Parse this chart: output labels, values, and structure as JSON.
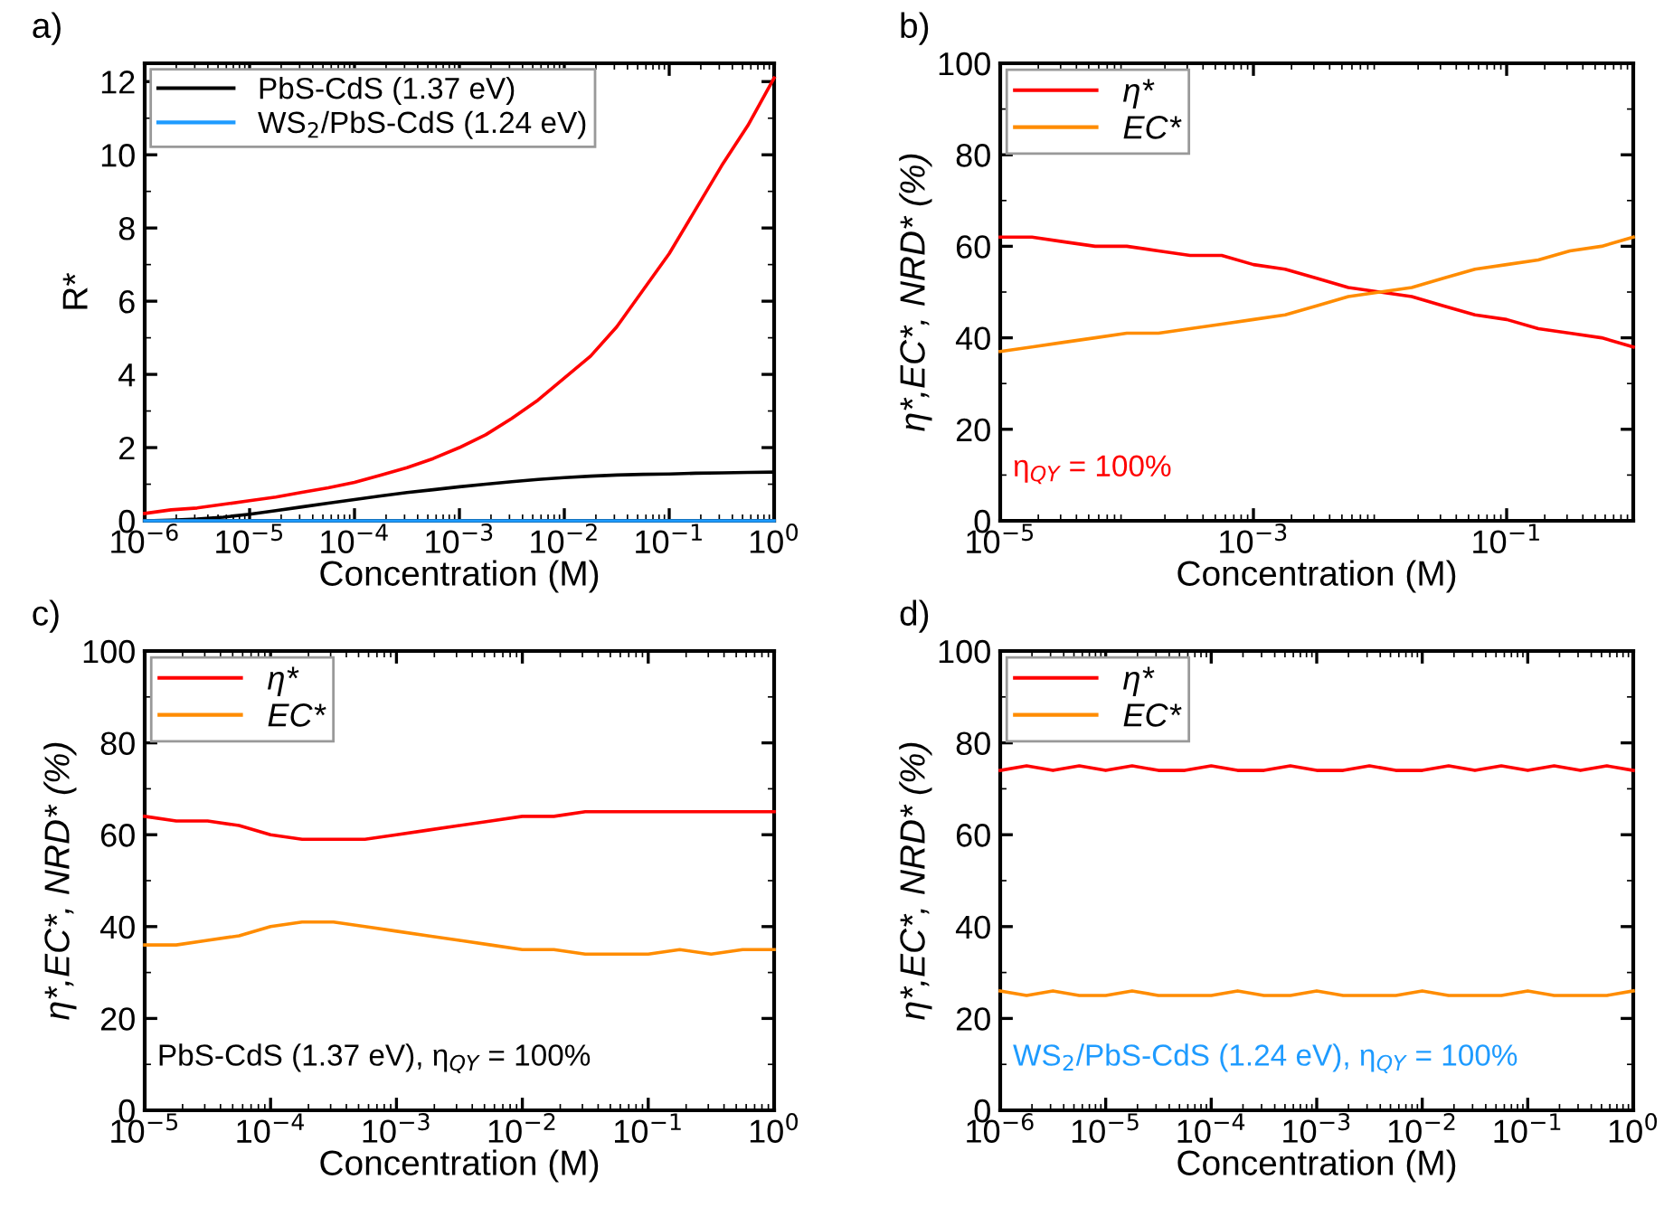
{
  "chart_data": [
    {
      "type": "line",
      "title": "a)",
      "xlabel": "Concentration (M)",
      "ylabel": "R*",
      "log": "x",
      "xlim": [
        1e-06,
        1
      ],
      "ylim": [
        0,
        12.5
      ],
      "xticks": [
        {
          "value": 1e-06,
          "label": "10$^{−6}$"
        },
        {
          "value": 1e-05,
          "label": "10$^{−5}$"
        },
        {
          "value": 0.0001,
          "label": "10$^{−4}$"
        },
        {
          "value": 0.001,
          "label": "10$^{−3}$"
        },
        {
          "value": 0.01,
          "label": "10$^{−2}$"
        },
        {
          "value": 0.1,
          "label": "10$^{−1}$"
        },
        {
          "value": 1,
          "label": "10$^{0}$"
        }
      ],
      "yticks": [
        0,
        2,
        4,
        6,
        8,
        10,
        12
      ],
      "grid": false,
      "legend": "top left",
      "x": [
        1e-06,
        1.78e-06,
        3.16e-06,
        5.62e-06,
        1e-05,
        1.78e-05,
        3.16e-05,
        5.62e-05,
        0.0001,
        0.000178,
        0.000316,
        0.000562,
        0.001,
        0.00178,
        0.00316,
        0.00562,
        0.01,
        0.0178,
        0.0316,
        0.0562,
        0.1,
        0.178,
        0.316,
        0.562,
        1
      ],
      "series": [
        {
          "color": "#ff0000",
          "values": [
            0.2,
            0.3,
            0.35,
            0.45,
            0.55,
            0.65,
            0.78,
            0.9,
            1.05,
            1.25,
            1.45,
            1.7,
            2.0,
            2.35,
            2.8,
            3.3,
            3.9,
            4.5,
            5.3,
            6.3,
            7.3,
            8.5,
            9.7,
            10.8,
            12.1
          ]
        },
        {
          "name": "PbS-CdS (1.37 eV)",
          "color": "#000000",
          "values": [
            0,
            0.02,
            0.05,
            0.1,
            0.18,
            0.28,
            0.38,
            0.48,
            0.58,
            0.68,
            0.77,
            0.85,
            0.93,
            1.0,
            1.07,
            1.13,
            1.18,
            1.22,
            1.25,
            1.27,
            1.28,
            1.3,
            1.31,
            1.32,
            1.33
          ]
        },
        {
          "name": "WS$_{2}$/PbS-CdS (1.24 eV)",
          "color": "#1e9bff",
          "values": [
            0,
            0,
            0,
            0,
            0,
            0,
            0,
            0,
            0,
            0,
            0,
            0,
            0,
            0,
            0,
            0,
            0,
            0,
            0,
            0,
            0,
            0,
            0,
            0,
            0
          ]
        }
      ]
    },
    {
      "type": "line",
      "title": "b)",
      "xlabel": "Concentration (M)",
      "ylabel": "η*,EC*, NRD* (%)",
      "log": "x",
      "xlim": [
        1e-05,
        1
      ],
      "ylim": [
        0,
        100
      ],
      "xticks": [
        {
          "value": 1e-05,
          "label": "10$^{−5}$"
        },
        {
          "value": 0.001,
          "label": "10$^{−3}$"
        },
        {
          "value": 0.1,
          "label": "10$^{−1}$"
        }
      ],
      "yticks": [
        0,
        20,
        40,
        60,
        80,
        100
      ],
      "grid": false,
      "legend": "top left",
      "annotations": [
        "η$_{QY}$ = 100%"
      ],
      "x": [
        1e-05,
        1.78e-05,
        3.16e-05,
        5.62e-05,
        0.0001,
        0.000178,
        0.000316,
        0.000562,
        0.001,
        0.00178,
        0.00316,
        0.00562,
        0.01,
        0.0178,
        0.0316,
        0.0562,
        0.1,
        0.178,
        0.316,
        0.562,
        1
      ],
      "series": [
        {
          "name": "η*",
          "color": "#ff0000",
          "values": [
            62,
            62,
            61,
            60,
            60,
            59,
            58,
            58,
            56,
            55,
            53,
            51,
            50,
            49,
            47,
            45,
            44,
            42,
            41,
            40,
            38
          ]
        },
        {
          "name": "EC*",
          "color": "#ff8c00",
          "values": [
            37,
            38,
            39,
            40,
            41,
            41,
            42,
            43,
            44,
            45,
            47,
            49,
            50,
            51,
            53,
            55,
            56,
            57,
            59,
            60,
            62
          ]
        }
      ]
    },
    {
      "type": "line",
      "title": "c)",
      "xlabel": "Concentration (M)",
      "ylabel": "η*,EC*, NRD* (%)",
      "log": "x",
      "xlim": [
        1e-05,
        1
      ],
      "ylim": [
        0,
        100
      ],
      "xticks": [
        {
          "value": 1e-05,
          "label": "10$^{−5}$"
        },
        {
          "value": 0.0001,
          "label": "10$^{−4}$"
        },
        {
          "value": 0.001,
          "label": "10$^{−3}$"
        },
        {
          "value": 0.01,
          "label": "10$^{−2}$"
        },
        {
          "value": 0.1,
          "label": "10$^{−1}$"
        },
        {
          "value": 1,
          "label": "10$^{0}$"
        }
      ],
      "yticks": [
        0,
        20,
        40,
        60,
        80,
        100
      ],
      "grid": false,
      "legend": "top left",
      "annotations": [
        "PbS-CdS (1.37 eV), η$_{QY}$ = 100%"
      ],
      "x": [
        1e-05,
        1.78e-05,
        3.16e-05,
        5.62e-05,
        0.0001,
        0.000178,
        0.000316,
        0.000562,
        0.001,
        0.00178,
        0.00316,
        0.00562,
        0.01,
        0.0178,
        0.0316,
        0.0562,
        0.1,
        0.178,
        0.316,
        0.562,
        1
      ],
      "series": [
        {
          "name": "η*",
          "color": "#ff0000",
          "values": [
            64,
            63,
            63,
            62,
            60,
            59,
            59,
            59,
            60,
            61,
            62,
            63,
            64,
            64,
            65,
            65,
            65,
            65,
            65,
            65,
            65
          ]
        },
        {
          "name": "EC*",
          "color": "#ff8c00",
          "values": [
            36,
            36,
            37,
            38,
            40,
            41,
            41,
            40,
            39,
            38,
            37,
            36,
            35,
            35,
            34,
            34,
            34,
            35,
            34,
            35,
            35
          ]
        }
      ]
    },
    {
      "type": "line",
      "title": "d)",
      "xlabel": "Concentration (M)",
      "ylabel": "η*,EC*, NRD* (%)",
      "log": "x",
      "xlim": [
        1e-06,
        1
      ],
      "ylim": [
        0,
        100
      ],
      "xticks": [
        {
          "value": 1e-06,
          "label": "10$^{−6}$"
        },
        {
          "value": 1e-05,
          "label": "10$^{−5}$"
        },
        {
          "value": 0.0001,
          "label": "10$^{−4}$"
        },
        {
          "value": 0.001,
          "label": "10$^{−3}$"
        },
        {
          "value": 0.01,
          "label": "10$^{−2}$"
        },
        {
          "value": 0.1,
          "label": "10$^{−1}$"
        },
        {
          "value": 1,
          "label": "10$^{0}$"
        }
      ],
      "yticks": [
        0,
        20,
        40,
        60,
        80,
        100
      ],
      "grid": false,
      "legend": "top left",
      "annotations": [
        "WS$_{2}$/PbS-CdS (1.24 eV), η$_{QY}$ = 100%"
      ],
      "x": [
        1e-06,
        1.78e-06,
        3.16e-06,
        5.62e-06,
        1e-05,
        1.78e-05,
        3.16e-05,
        5.62e-05,
        0.0001,
        0.000178,
        0.000316,
        0.000562,
        0.001,
        0.00178,
        0.00316,
        0.00562,
        0.01,
        0.0178,
        0.0316,
        0.0562,
        0.1,
        0.178,
        0.316,
        0.562,
        1
      ],
      "series": [
        {
          "name": "η*",
          "color": "#ff0000",
          "values": [
            74,
            75,
            74,
            75,
            74,
            75,
            74,
            74,
            75,
            74,
            74,
            75,
            74,
            74,
            75,
            74,
            74,
            75,
            74,
            75,
            74,
            75,
            74,
            75,
            74
          ]
        },
        {
          "name": "EC*",
          "color": "#ff8c00",
          "values": [
            26,
            25,
            26,
            25,
            25,
            26,
            25,
            25,
            25,
            26,
            25,
            25,
            26,
            25,
            25,
            25,
            26,
            25,
            25,
            25,
            26,
            25,
            25,
            25,
            26
          ]
        }
      ]
    }
  ]
}
